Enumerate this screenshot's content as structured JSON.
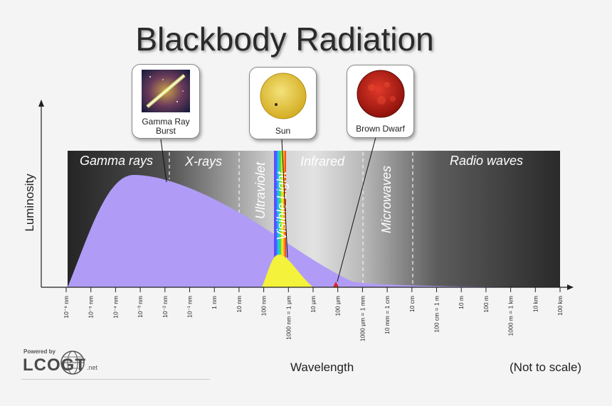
{
  "title": "Blackbody Radiation",
  "axes": {
    "y_label": "Luminosity",
    "x_label": "Wavelength",
    "note": "(Not to scale)"
  },
  "regions": [
    "Gamma rays",
    "X-rays",
    "Ultraviolet",
    "Visible Light",
    "Infrared",
    "Microwaves",
    "Radio waves"
  ],
  "ticks": [
    "10⁻⁶ nm",
    "10⁻⁵ nm",
    "10⁻⁴ nm",
    "10⁻³ nm",
    "10⁻² nm",
    "10⁻¹ nm",
    "1 nm",
    "10 nm",
    "100 nm",
    "1000 nm = 1 µm",
    "10 µm",
    "100 µm",
    "1000 µm = 1 mm",
    "10 mm = 1 cm",
    "10 cm",
    "100 cm = 1 m",
    "10 m",
    "100 m",
    "1000 m = 1 km",
    "10 km",
    "100 km"
  ],
  "callouts": {
    "grb": "Gamma Ray Burst",
    "sun": "Sun",
    "brown_dwarf": "Brown Dwarf"
  },
  "logo": {
    "powered": "Powered by",
    "name": "LCOGT",
    "suffix": ".net"
  },
  "colors": {
    "grb_curve": "#b09cf6",
    "sun_curve": "#f4f23a",
    "brown_dwarf_curve": "#e02020",
    "band_dark": "#2e2e2e",
    "band_light": "#d6d6d6"
  }
}
